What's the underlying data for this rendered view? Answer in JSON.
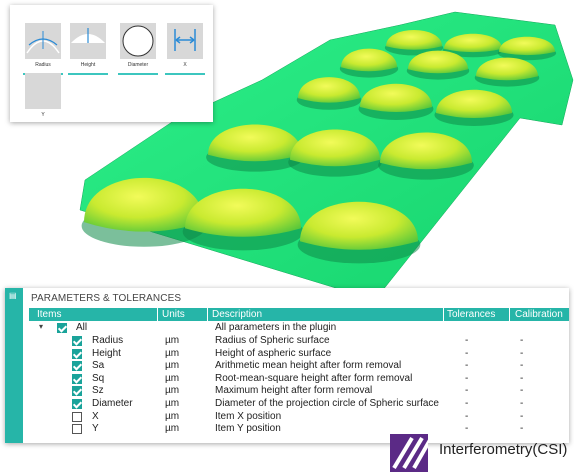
{
  "thumbnails": [
    {
      "label": "Radius",
      "icon": "radius-icon"
    },
    {
      "label": "Height",
      "icon": "height-icon"
    },
    {
      "label": "Diameter",
      "icon": "diameter-icon"
    },
    {
      "label": "X",
      "icon": "x-position-icon"
    },
    {
      "label": "Y",
      "icon": "y-position-icon"
    }
  ],
  "panel": {
    "title": "PARAMETERS & TOLERANCES",
    "columns": [
      "Items",
      "Units",
      "Description",
      "Tolerances",
      "Calibration"
    ],
    "root": {
      "label": "All",
      "description": "All parameters in the plugin",
      "checked": true
    },
    "rows": [
      {
        "item": "Radius",
        "unit": "µm",
        "description": "Radius of Spheric surface",
        "tolerance": "-",
        "calibration": "-",
        "checked": true
      },
      {
        "item": "Height",
        "unit": "µm",
        "description": "Height of aspheric surface",
        "tolerance": "-",
        "calibration": "-",
        "checked": true
      },
      {
        "item": "Sa",
        "unit": "µm",
        "description": "Arithmetic mean height after form removal",
        "tolerance": "-",
        "calibration": "-",
        "checked": true
      },
      {
        "item": "Sq",
        "unit": "µm",
        "description": "Root-mean-square height after form removal",
        "tolerance": "-",
        "calibration": "-",
        "checked": true
      },
      {
        "item": "Sz",
        "unit": "µm",
        "description": "Maximum height after form removal",
        "tolerance": "-",
        "calibration": "-",
        "checked": true
      },
      {
        "item": "Diameter",
        "unit": "µm",
        "description": "Diameter of the projection circle of Spheric surface",
        "tolerance": "-",
        "calibration": "-",
        "checked": true
      },
      {
        "item": "X",
        "unit": "µm",
        "description": "Item X position",
        "tolerance": "-",
        "calibration": "-",
        "checked": false
      },
      {
        "item": "Y",
        "unit": "µm",
        "description": "Item Y position",
        "tolerance": "-",
        "calibration": "-",
        "checked": false
      }
    ]
  },
  "logo": {
    "text": "Interferometry(CSI)"
  },
  "colors": {
    "accent": "#26b5a8",
    "surface": "#19e07a",
    "dome": "#d8f23a",
    "logo": "#5b2a86"
  }
}
